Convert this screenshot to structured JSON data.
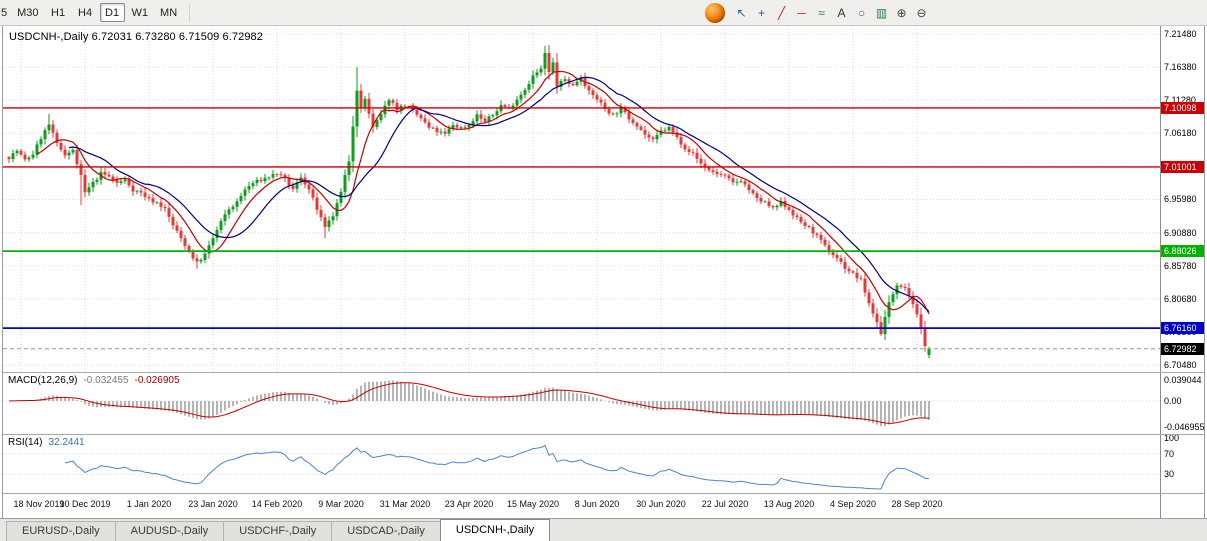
{
  "toolbar": {
    "timeframes": [
      {
        "label": "5",
        "clipped": true
      },
      {
        "label": "M30"
      },
      {
        "label": "H1"
      },
      {
        "label": "H4"
      },
      {
        "label": "D1",
        "active": true
      },
      {
        "label": "W1"
      },
      {
        "label": "MN"
      }
    ],
    "icons": [
      {
        "name": "app-logo-icon",
        "type": "logo"
      },
      {
        "name": "cursor-icon",
        "glyph": "↖",
        "color": "#1a5fb4"
      },
      {
        "name": "crosshair-icon",
        "glyph": "+",
        "color": "#1a5fb4"
      },
      {
        "name": "trendline-icon",
        "glyph": "╱",
        "color": "#b02a2a"
      },
      {
        "name": "horizontal-line-icon",
        "glyph": "─",
        "color": "#b02a2a"
      },
      {
        "name": "fibonacci-icon",
        "glyph": "≈",
        "color": "#2a7a2a"
      },
      {
        "name": "text-label-icon",
        "glyph": "A",
        "color": "#333333"
      },
      {
        "name": "shapes-icon",
        "glyph": "○",
        "color": "#1a5fb4"
      },
      {
        "name": "chart-type-icon",
        "glyph": "▥",
        "color": "#2a7a50"
      },
      {
        "name": "zoom-in-icon",
        "glyph": "⊕",
        "color": "#444444"
      },
      {
        "name": "zoom-out-icon",
        "glyph": "⊖",
        "color": "#444444"
      }
    ]
  },
  "chart": {
    "title": "USDCNH-,Daily 6.72031 6.73280 6.71509 6.72982",
    "symbol": "USDCNH-",
    "period": "Daily"
  },
  "colors": {
    "bull": "#0e9e1e",
    "bear": "#e23b3b",
    "ma_fast": "#c40000",
    "ma_slow": "#00007f",
    "macd_hist": "#b5b5b5",
    "macd_signal": "#c40000",
    "rsi_line": "#4a86c8",
    "grid": "#dadada",
    "current_badge": "#000000"
  },
  "chart_data": {
    "type": "candlestick",
    "symbol": "USDCNH-",
    "timeframe": "Daily",
    "last_candle": {
      "open": 6.72031,
      "high": 6.7328,
      "low": 6.71509,
      "close": 6.72982
    },
    "current_price": {
      "value": 6.72982,
      "text": "6.72982"
    },
    "y_axis": {
      "gridlines": [
        7.2148,
        7.1638,
        7.1128,
        7.0618,
        7.0108,
        6.9598,
        6.9088,
        6.8578,
        6.8068,
        6.7558,
        6.7048
      ],
      "visible_range": [
        6.695,
        7.225
      ]
    },
    "x_axis": {
      "labels": [
        [
          "18 Nov 2019",
          3
        ],
        [
          "10 Dec 2019",
          19
        ],
        [
          "1 Jan 2020",
          35
        ],
        [
          "23 Jan 2020",
          51
        ],
        [
          "14 Feb 2020",
          67
        ],
        [
          "9 Mar 2020",
          83
        ],
        [
          "31 Mar 2020",
          99
        ],
        [
          "23 Apr 2020",
          115
        ],
        [
          "15 May 2020",
          131
        ],
        [
          "8 Jun 2020",
          147
        ],
        [
          "30 Jun 2020",
          163
        ],
        [
          "22 Jul 2020",
          179
        ],
        [
          "13 Aug 2020",
          195
        ],
        [
          "4 Sep 2020",
          211
        ],
        [
          "28 Sep 2020",
          227
        ]
      ]
    },
    "levels": [
      {
        "text": "7.10098",
        "value": 7.10098,
        "color": "#cc0000",
        "width": 1.4,
        "type": "resistance"
      },
      {
        "text": "7.01001",
        "value": 7.01001,
        "color": "#cc0000",
        "width": 1.4,
        "type": "resistance"
      },
      {
        "text": "6.88026",
        "value": 6.88026,
        "color": "#00b300",
        "width": 1.8,
        "type": "support"
      },
      {
        "text": "6.76160",
        "value": 6.7616,
        "color": "#0000cc",
        "width": 1.8,
        "type": "support"
      }
    ],
    "moving_averages": [
      {
        "period": 8,
        "color": "#c40000"
      },
      {
        "period": 16,
        "color": "#00007f"
      }
    ],
    "candles": {
      "count": 231,
      "anchors": [
        [
          0,
          7.025
        ],
        [
          2,
          7.035
        ],
        [
          4,
          7.02
        ],
        [
          6,
          7.03
        ],
        [
          8,
          7.055
        ],
        [
          10,
          7.075
        ],
        [
          12,
          7.045
        ],
        [
          14,
          7.03
        ],
        [
          16,
          7.035
        ],
        [
          18,
          6.995
        ],
        [
          19,
          6.97
        ],
        [
          21,
          6.985
        ],
        [
          23,
          7.0
        ],
        [
          25,
          6.995
        ],
        [
          27,
          6.985
        ],
        [
          29,
          6.99
        ],
        [
          31,
          6.975
        ],
        [
          33,
          6.97
        ],
        [
          35,
          6.96
        ],
        [
          37,
          6.955
        ],
        [
          39,
          6.945
        ],
        [
          41,
          6.92
        ],
        [
          43,
          6.9
        ],
        [
          45,
          6.88
        ],
        [
          47,
          6.862
        ],
        [
          49,
          6.875
        ],
        [
          51,
          6.9
        ],
        [
          53,
          6.925
        ],
        [
          55,
          6.945
        ],
        [
          57,
          6.955
        ],
        [
          59,
          6.975
        ],
        [
          61,
          6.985
        ],
        [
          63,
          6.99
        ],
        [
          65,
          6.995
        ],
        [
          67,
          7.0
        ],
        [
          69,
          6.99
        ],
        [
          71,
          6.975
        ],
        [
          73,
          6.995
        ],
        [
          75,
          6.975
        ],
        [
          77,
          6.945
        ],
        [
          79,
          6.915
        ],
        [
          81,
          6.935
        ],
        [
          83,
          6.97
        ],
        [
          85,
          7.02
        ],
        [
          87,
          7.13
        ],
        [
          88,
          7.1
        ],
        [
          89,
          7.115
        ],
        [
          91,
          7.07
        ],
        [
          93,
          7.09
        ],
        [
          95,
          7.115
        ],
        [
          97,
          7.1
        ],
        [
          99,
          7.105
        ],
        [
          101,
          7.095
        ],
        [
          103,
          7.085
        ],
        [
          105,
          7.07
        ],
        [
          107,
          7.065
        ],
        [
          109,
          7.06
        ],
        [
          111,
          7.075
        ],
        [
          113,
          7.07
        ],
        [
          115,
          7.075
        ],
        [
          117,
          7.09
        ],
        [
          119,
          7.08
        ],
        [
          121,
          7.09
        ],
        [
          123,
          7.105
        ],
        [
          125,
          7.1
        ],
        [
          127,
          7.115
        ],
        [
          129,
          7.13
        ],
        [
          131,
          7.15
        ],
        [
          133,
          7.16
        ],
        [
          134,
          7.185
        ],
        [
          135,
          7.155
        ],
        [
          136,
          7.17
        ],
        [
          137,
          7.135
        ],
        [
          139,
          7.145
        ],
        [
          141,
          7.135
        ],
        [
          143,
          7.15
        ],
        [
          145,
          7.125
        ],
        [
          147,
          7.115
        ],
        [
          149,
          7.1
        ],
        [
          151,
          7.09
        ],
        [
          153,
          7.1
        ],
        [
          155,
          7.085
        ],
        [
          157,
          7.075
        ],
        [
          159,
          7.06
        ],
        [
          161,
          7.05
        ],
        [
          163,
          7.065
        ],
        [
          165,
          7.07
        ],
        [
          167,
          7.055
        ],
        [
          169,
          7.04
        ],
        [
          171,
          7.03
        ],
        [
          173,
          7.015
        ],
        [
          175,
          7.005
        ],
        [
          177,
          7.0
        ],
        [
          179,
          6.995
        ],
        [
          181,
          6.985
        ],
        [
          183,
          6.99
        ],
        [
          185,
          6.975
        ],
        [
          187,
          6.96
        ],
        [
          189,
          6.955
        ],
        [
          191,
          6.945
        ],
        [
          193,
          6.955
        ],
        [
          195,
          6.945
        ],
        [
          197,
          6.93
        ],
        [
          199,
          6.92
        ],
        [
          201,
          6.91
        ],
        [
          203,
          6.895
        ],
        [
          205,
          6.88
        ],
        [
          207,
          6.87
        ],
        [
          209,
          6.855
        ],
        [
          211,
          6.845
        ],
        [
          213,
          6.835
        ],
        [
          215,
          6.8
        ],
        [
          217,
          6.77
        ],
        [
          218,
          6.755
        ],
        [
          220,
          6.8
        ],
        [
          222,
          6.83
        ],
        [
          224,
          6.825
        ],
        [
          226,
          6.8
        ],
        [
          228,
          6.76
        ],
        [
          229,
          6.737
        ],
        [
          230,
          6.7298
        ]
      ],
      "overrides": {
        "10": {
          "h": 7.092
        },
        "18": {
          "l": 6.951
        },
        "47": {
          "l": 6.853
        },
        "79": {
          "l": 6.9
        },
        "86": {
          "l": 7.002
        },
        "87": {
          "h": 7.1638
        },
        "134": {
          "h": 7.1965
        },
        "218": {
          "l": 6.75
        },
        "230": {
          "o": 6.72031,
          "h": 6.7328,
          "l": 6.71509,
          "c": 6.72982
        }
      }
    },
    "indicators": {
      "macd": {
        "name": "MACD(12,26,9)",
        "value_main": "-0.032455",
        "value_signal": "-0.026905",
        "params": [
          12,
          26,
          9
        ],
        "axis": [
          {
            "text": "0.039044",
            "value": 0.039044
          },
          {
            "text": "0.00",
            "value": 0
          },
          {
            "text": "-0.046955",
            "value": -0.046955
          }
        ]
      },
      "rsi": {
        "name": "RSI(14)",
        "value": "32.2441",
        "period": 14,
        "levels": [
          70,
          30
        ],
        "axis": [
          {
            "text": "100",
            "value": 100
          },
          {
            "text": "70",
            "value": 70
          },
          {
            "text": "30",
            "value": 30
          }
        ]
      }
    }
  },
  "tabs": [
    {
      "label": "EURUSD-,Daily"
    },
    {
      "label": "AUDUSD-,Daily"
    },
    {
      "label": "USDCHF-,Daily"
    },
    {
      "label": "USDCAD-,Daily"
    },
    {
      "label": "USDCNH-,Daily",
      "active": true
    }
  ]
}
